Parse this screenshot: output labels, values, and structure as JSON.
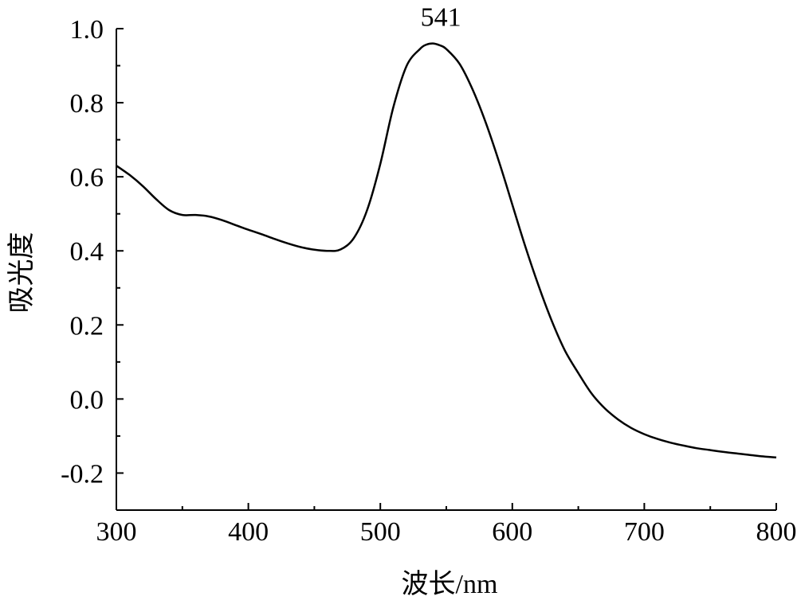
{
  "chart_data": {
    "type": "line",
    "title": "",
    "xlabel": "波长/nm",
    "ylabel": "吸光度",
    "xlim": [
      300,
      800
    ],
    "ylim": [
      -0.3,
      1.0
    ],
    "x_ticks": [
      300,
      400,
      500,
      600,
      700,
      800
    ],
    "x_tick_labels": [
      "300",
      "400",
      "500",
      "600",
      "700",
      "800"
    ],
    "y_ticks": [
      -0.2,
      0.0,
      0.2,
      0.4,
      0.6,
      0.8,
      1.0
    ],
    "y_tick_labels": [
      "-0.2",
      "0.0",
      "0.2",
      "0.4",
      "0.6",
      "0.8",
      "1.0"
    ],
    "grid": false,
    "annotations": [
      {
        "text": "541",
        "x": 541,
        "y": 0.96
      }
    ],
    "series": [
      {
        "x": [
          300,
          310,
          320,
          330,
          340,
          350,
          360,
          370,
          380,
          390,
          400,
          410,
          420,
          430,
          440,
          450,
          460,
          470,
          480,
          490,
          500,
          510,
          520,
          530,
          535,
          540,
          545,
          550,
          560,
          570,
          580,
          590,
          600,
          610,
          620,
          630,
          640,
          650,
          660,
          670,
          680,
          690,
          700,
          710,
          720,
          730,
          740,
          750,
          760,
          770,
          780,
          790,
          800
        ],
        "y": [
          0.63,
          0.605,
          0.575,
          0.54,
          0.51,
          0.497,
          0.497,
          0.493,
          0.483,
          0.47,
          0.457,
          0.445,
          0.432,
          0.42,
          0.41,
          0.403,
          0.4,
          0.404,
          0.435,
          0.51,
          0.635,
          0.79,
          0.9,
          0.945,
          0.957,
          0.96,
          0.955,
          0.945,
          0.905,
          0.835,
          0.745,
          0.64,
          0.525,
          0.41,
          0.305,
          0.21,
          0.13,
          0.07,
          0.015,
          -0.025,
          -0.055,
          -0.078,
          -0.095,
          -0.108,
          -0.118,
          -0.126,
          -0.133,
          -0.138,
          -0.143,
          -0.147,
          -0.151,
          -0.155,
          -0.158
        ]
      }
    ]
  }
}
